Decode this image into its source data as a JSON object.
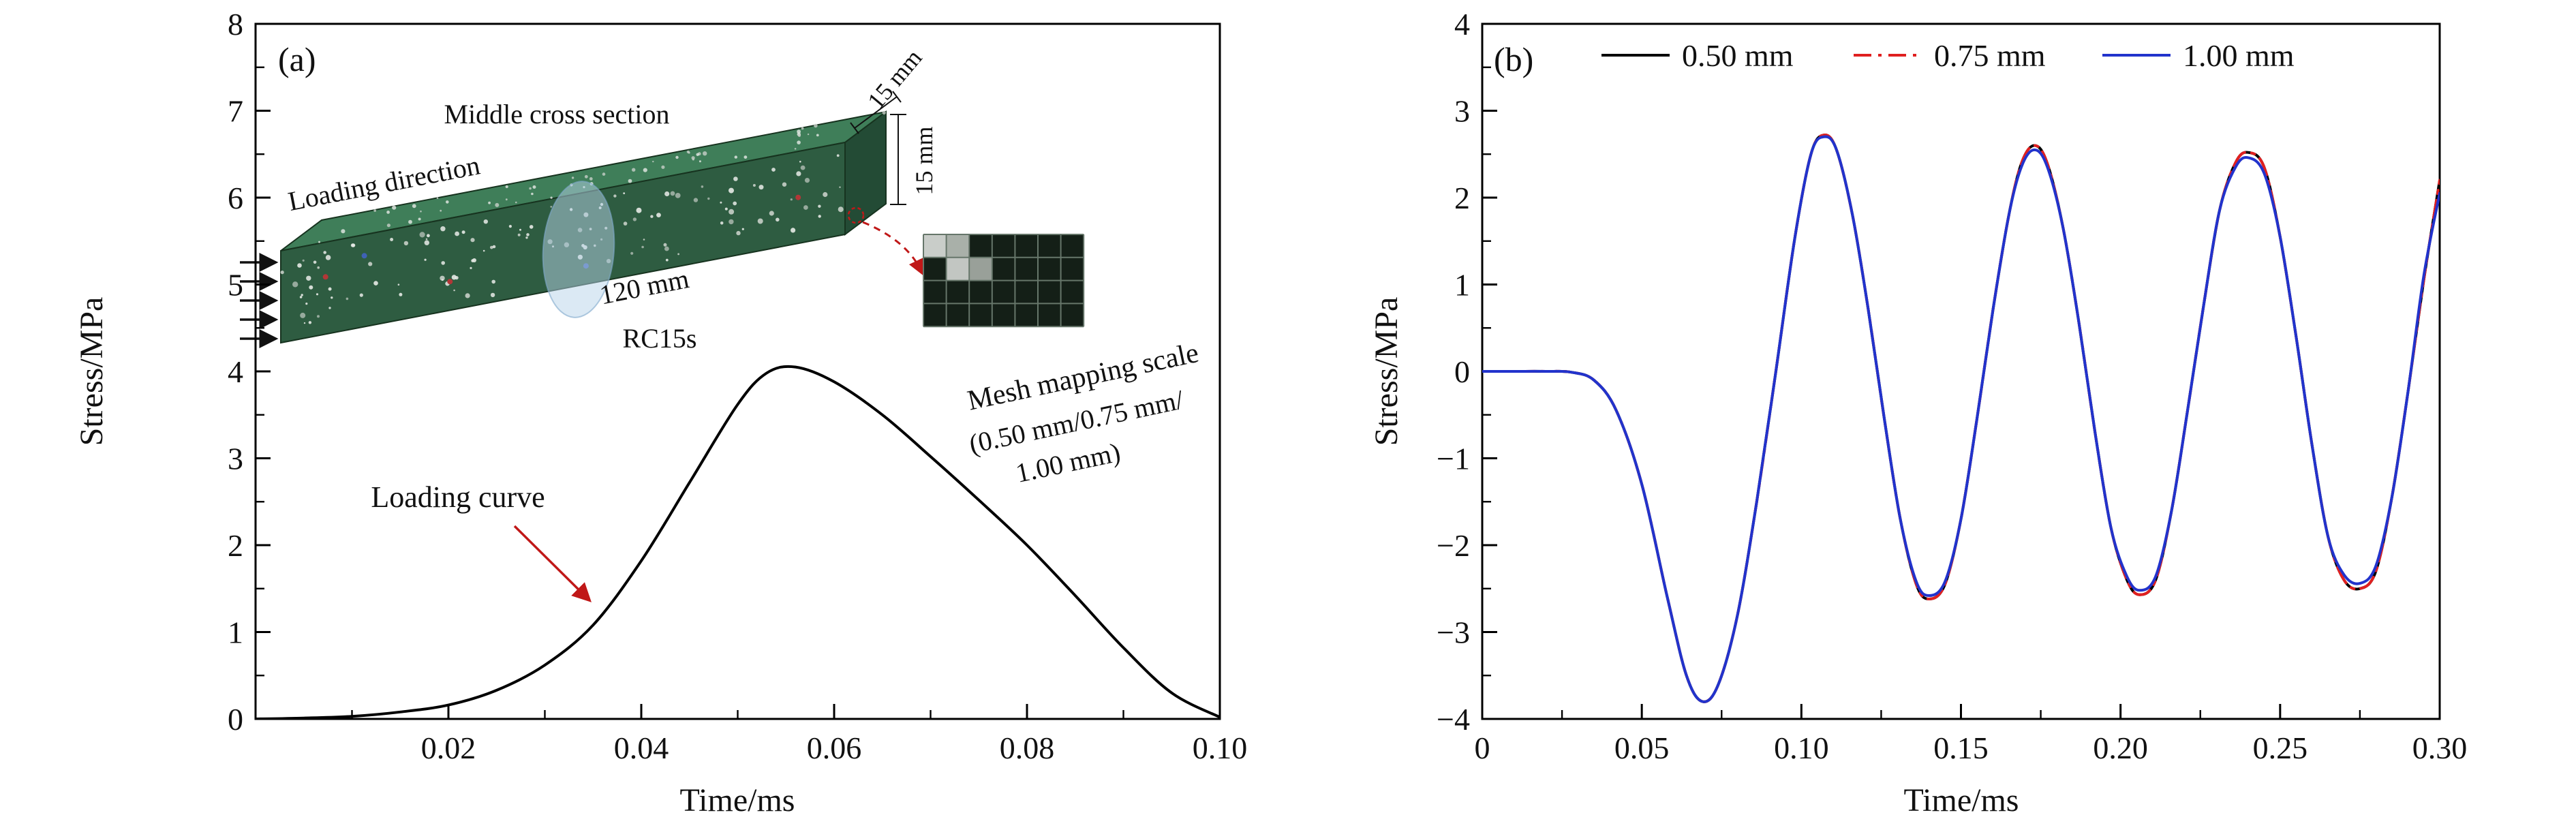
{
  "page": {
    "background": "#ffffff"
  },
  "panel_a": {
    "label": "(a)",
    "xlabel": "Time/ms",
    "ylabel": "Stress/MPa",
    "annotation_loading_curve": "Loading curve",
    "colors": {
      "annotation_red": "#c01818",
      "curve_black": "#000000"
    },
    "inset": {
      "middle_cross_section": "Middle cross section",
      "loading_direction": "Loading direction",
      "length_label": "120 mm",
      "specimen_label": "RC15s",
      "depth_label": "15 mm",
      "height_label": "15 mm",
      "mesh_caption": "Mesh mapping scale",
      "mesh_scale_line1": "(0.50 mm/0.75 mm/",
      "mesh_scale_line2": "1.00 mm)",
      "mesh": {
        "cols": 7,
        "rows": 4,
        "highlighted_cells": [
          {
            "col": 0,
            "row": 0,
            "shade": "#c9cdc9"
          },
          {
            "col": 1,
            "row": 0,
            "shade": "#a9b0a9"
          },
          {
            "col": 1,
            "row": 1,
            "shade": "#c2c6c2"
          },
          {
            "col": 2,
            "row": 1,
            "shade": "#99a099"
          }
        ]
      },
      "colors": {
        "beam_front": "#2e5c41",
        "beam_top": "#3f7e59",
        "beam_side": "#234b35",
        "cross_section": "#b7d3ea",
        "mesh_dark": "#141f17",
        "mesh_line": "#66766a",
        "speckles": [
          "#e7eae6",
          "#c8cfc8",
          "#a3b2a7",
          "#dfe3df"
        ]
      }
    }
  },
  "panel_b": {
    "label": "(b)",
    "xlabel": "Time/ms",
    "ylabel": "Stress/MPa"
  },
  "chart_data": [
    {
      "type": "line",
      "panel": "a",
      "title": "",
      "xlabel": "Time/ms",
      "ylabel": "Stress/MPa",
      "xlim": [
        0,
        0.1
      ],
      "ylim": [
        0,
        8
      ],
      "xticks": [
        0.02,
        0.04,
        0.06,
        0.08,
        0.1
      ],
      "xtick_labels": [
        "0.02",
        "0.04",
        "0.06",
        "0.08",
        "0.10"
      ],
      "yticks": [
        0,
        1,
        2,
        3,
        4,
        5,
        6,
        7,
        8
      ],
      "ytick_labels": [
        "0",
        "1",
        "2",
        "3",
        "4",
        "5",
        "6",
        "7",
        "8"
      ],
      "grid": false,
      "series": [
        {
          "name": "Loading curve",
          "color": "#000000",
          "style": "solid",
          "x": [
            0,
            0.005,
            0.01,
            0.015,
            0.02,
            0.025,
            0.03,
            0.035,
            0.04,
            0.045,
            0.05,
            0.053,
            0.056,
            0.06,
            0.065,
            0.07,
            0.075,
            0.08,
            0.085,
            0.09,
            0.095,
            0.1
          ],
          "y": [
            0,
            0.01,
            0.03,
            0.08,
            0.16,
            0.33,
            0.62,
            1.08,
            1.82,
            2.72,
            3.62,
            3.98,
            4.05,
            3.88,
            3.5,
            3.02,
            2.52,
            2,
            1.42,
            0.82,
            0.3,
            0.02
          ]
        }
      ]
    },
    {
      "type": "line",
      "panel": "b",
      "title": "",
      "xlabel": "Time/ms",
      "ylabel": "Stress/MPa",
      "xlim": [
        0,
        0.3
      ],
      "ylim": [
        -4,
        4
      ],
      "xticks": [
        0,
        0.05,
        0.1,
        0.15,
        0.2,
        0.25,
        0.3
      ],
      "xtick_labels": [
        "0",
        "0.05",
        "0.10",
        "0.15",
        "0.20",
        "0.25",
        "0.30"
      ],
      "yticks": [
        -4,
        -3,
        -2,
        -1,
        0,
        1,
        2,
        3,
        4
      ],
      "ytick_labels": [
        "−4",
        "−3",
        "−2",
        "−1",
        "0",
        "1",
        "2",
        "3",
        "4"
      ],
      "grid": false,
      "legend_position": "top-inside",
      "x": [
        0,
        0.01,
        0.02,
        0.028,
        0.035,
        0.042,
        0.05,
        0.058,
        0.064,
        0.069,
        0.074,
        0.08,
        0.086,
        0.092,
        0.098,
        0.103,
        0.107,
        0.111,
        0.116,
        0.121,
        0.126,
        0.131,
        0.136,
        0.14,
        0.145,
        0.15,
        0.155,
        0.16,
        0.165,
        0.169,
        0.173,
        0.177,
        0.182,
        0.187,
        0.192,
        0.197,
        0.202,
        0.206,
        0.211,
        0.216,
        0.221,
        0.226,
        0.231,
        0.236,
        0.24,
        0.245,
        0.25,
        0.255,
        0.26,
        0.265,
        0.27,
        0.275,
        0.28,
        0.285,
        0.29,
        0.295,
        0.3
      ],
      "series": [
        {
          "name": "0.50 mm",
          "color": "#000000",
          "style": "solid",
          "y": [
            0,
            0,
            0,
            -0.01,
            -0.1,
            -0.45,
            -1.3,
            -2.6,
            -3.5,
            -3.8,
            -3.6,
            -2.8,
            -1.5,
            0,
            1.55,
            2.5,
            2.72,
            2.55,
            1.8,
            0.7,
            -0.55,
            -1.7,
            -2.45,
            -2.62,
            -2.45,
            -1.7,
            -0.55,
            0.7,
            1.8,
            2.4,
            2.6,
            2.4,
            1.65,
            0.55,
            -0.7,
            -1.8,
            -2.4,
            -2.57,
            -2.4,
            -1.6,
            -0.45,
            0.75,
            1.85,
            2.4,
            2.52,
            2.35,
            1.55,
            0.4,
            -0.85,
            -1.9,
            -2.4,
            -2.5,
            -2.3,
            -1.45,
            -0.25,
            1.05,
            2.2
          ]
        },
        {
          "name": "0.75 mm",
          "color": "#e02020",
          "style": "dashdot",
          "y": [
            0,
            0,
            0,
            -0.01,
            -0.1,
            -0.45,
            -1.3,
            -2.6,
            -3.5,
            -3.8,
            -3.6,
            -2.8,
            -1.5,
            0,
            1.55,
            2.5,
            2.72,
            2.55,
            1.8,
            0.7,
            -0.55,
            -1.7,
            -2.45,
            -2.62,
            -2.45,
            -1.7,
            -0.55,
            0.7,
            1.8,
            2.4,
            2.6,
            2.4,
            1.65,
            0.55,
            -0.7,
            -1.8,
            -2.4,
            -2.57,
            -2.4,
            -1.6,
            -0.45,
            0.75,
            1.85,
            2.4,
            2.52,
            2.35,
            1.55,
            0.4,
            -0.85,
            -1.9,
            -2.4,
            -2.5,
            -2.3,
            -1.45,
            -0.25,
            1.05,
            2.2
          ]
        },
        {
          "name": "1.00 mm",
          "color": "#2233cc",
          "style": "solid",
          "y": [
            0,
            0,
            0,
            -0.01,
            -0.1,
            -0.45,
            -1.3,
            -2.6,
            -3.5,
            -3.8,
            -3.6,
            -2.8,
            -1.5,
            0,
            1.55,
            2.5,
            2.7,
            2.55,
            1.8,
            0.7,
            -0.55,
            -1.7,
            -2.42,
            -2.58,
            -2.42,
            -1.7,
            -0.55,
            0.7,
            1.8,
            2.36,
            2.55,
            2.36,
            1.65,
            0.55,
            -0.7,
            -1.8,
            -2.36,
            -2.52,
            -2.36,
            -1.6,
            -0.45,
            0.75,
            1.85,
            2.35,
            2.46,
            2.28,
            1.55,
            0.4,
            -0.85,
            -1.9,
            -2.34,
            -2.44,
            -2.24,
            -1.45,
            -0.25,
            1.1,
            2.05
          ]
        }
      ]
    }
  ]
}
